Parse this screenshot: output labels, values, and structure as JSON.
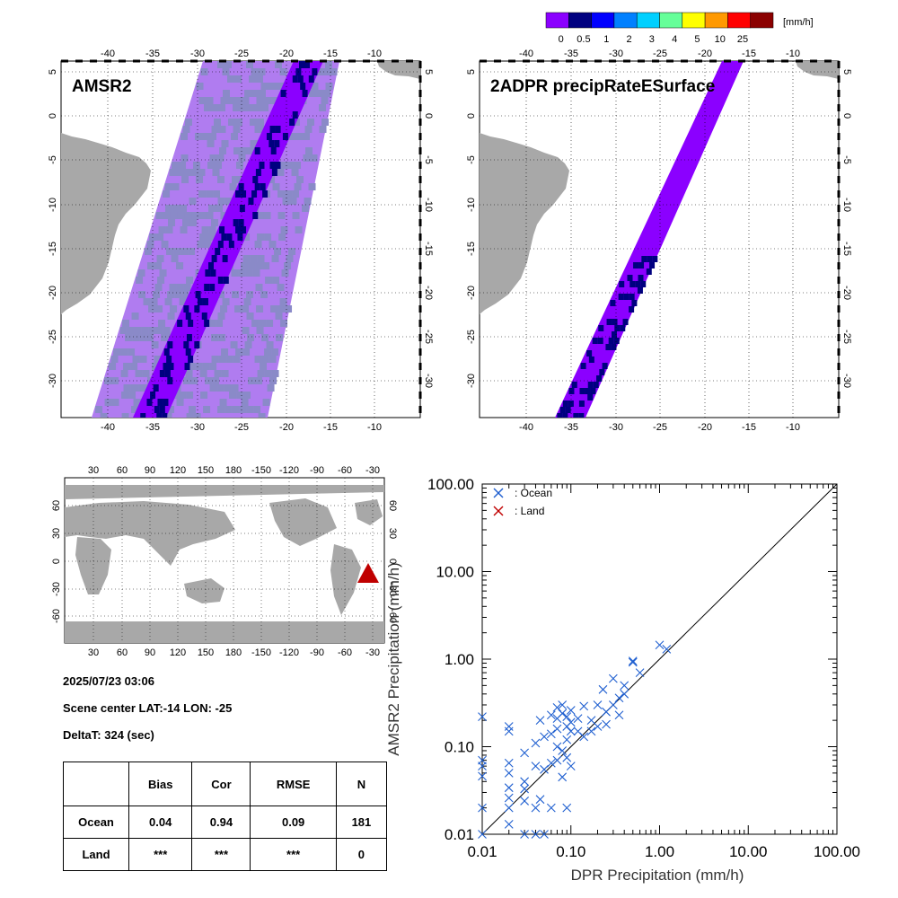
{
  "legend": {
    "unit": "[mm/h]",
    "labels": [
      "0",
      "0.5",
      "1",
      "2",
      "3",
      "4",
      "5",
      "10",
      "25"
    ],
    "colors": [
      "#8b00ff",
      "#000080",
      "#0000ff",
      "#0080ff",
      "#00d0ff",
      "#66ff99",
      "#ffff00",
      "#ff9900",
      "#ff0000",
      "#8b0000"
    ]
  },
  "maps": {
    "left_title": "AMSR2",
    "right_title": "2ADPR precipRateESurface",
    "lon_ticks": [
      "-40",
      "-35",
      "-30",
      "-25",
      "-20",
      "-15",
      "-10"
    ],
    "lat_ticks": [
      "5",
      "0",
      "-5",
      "-10",
      "-15",
      "-20",
      "-25",
      "-30"
    ],
    "land_color": "#a8a8a8",
    "swath_light": "#b07cf0",
    "swath_gray": "#8a8ac8",
    "swath_core": "#8b00ff",
    "swath_dark": "#000080"
  },
  "globe": {
    "lon_ticks": [
      "30",
      "60",
      "90",
      "120",
      "150",
      "180",
      "-150",
      "-120",
      "-90",
      "-60",
      "-30"
    ],
    "lat_ticks": [
      "60",
      "30",
      "0",
      "-30",
      "-60"
    ],
    "marker_color": "#c00000"
  },
  "info": {
    "datetime": "2025/07/23 03:06",
    "scene_center": "Scene center LAT:-14   LON: -25",
    "delta_t": "DeltaT:  324 (sec)"
  },
  "stats": {
    "headers": [
      "",
      "Bias",
      "Cor",
      "RMSE",
      "N"
    ],
    "rows": [
      {
        "label": "Ocean",
        "bias": "0.04",
        "cor": "0.94",
        "rmse": "0.09",
        "n": "181"
      },
      {
        "label": "Land",
        "bias": "***",
        "cor": "***",
        "rmse": "***",
        "n": "0"
      }
    ]
  },
  "chart_data": {
    "type": "scatter",
    "xlabel": "DPR Precipitation (mm/h)",
    "ylabel": "AMSR2 Precipitation (mm/h)",
    "xscale": "log",
    "yscale": "log",
    "xlim": [
      0.01,
      100
    ],
    "ylim": [
      0.01,
      100
    ],
    "tick_labels": [
      "0.01",
      "0.10",
      "1.00",
      "10.00",
      "100.00"
    ],
    "legend_placement": "top-left",
    "one_to_one_line": true,
    "series": [
      {
        "name": ": Ocean",
        "color": "#1f5fd0",
        "points": [
          [
            0.01,
            0.22
          ],
          [
            0.01,
            0.07
          ],
          [
            0.01,
            0.06
          ],
          [
            0.01,
            0.046
          ],
          [
            0.01,
            0.02
          ],
          [
            0.01,
            0.01
          ],
          [
            0.02,
            0.17
          ],
          [
            0.02,
            0.15
          ],
          [
            0.02,
            0.065
          ],
          [
            0.02,
            0.05
          ],
          [
            0.02,
            0.034
          ],
          [
            0.02,
            0.026
          ],
          [
            0.02,
            0.02
          ],
          [
            0.02,
            0.013
          ],
          [
            0.03,
            0.085
          ],
          [
            0.03,
            0.04
          ],
          [
            0.03,
            0.033
          ],
          [
            0.03,
            0.024
          ],
          [
            0.03,
            0.01
          ],
          [
            0.04,
            0.11
          ],
          [
            0.04,
            0.06
          ],
          [
            0.04,
            0.02
          ],
          [
            0.04,
            0.01
          ],
          [
            0.045,
            0.2
          ],
          [
            0.045,
            0.025
          ],
          [
            0.05,
            0.13
          ],
          [
            0.05,
            0.055
          ],
          [
            0.05,
            0.01
          ],
          [
            0.06,
            0.23
          ],
          [
            0.06,
            0.14
          ],
          [
            0.06,
            0.065
          ],
          [
            0.06,
            0.02
          ],
          [
            0.07,
            0.28
          ],
          [
            0.07,
            0.21
          ],
          [
            0.07,
            0.16
          ],
          [
            0.07,
            0.1
          ],
          [
            0.07,
            0.07
          ],
          [
            0.08,
            0.3
          ],
          [
            0.08,
            0.24
          ],
          [
            0.08,
            0.09
          ],
          [
            0.08,
            0.045
          ],
          [
            0.09,
            0.22
          ],
          [
            0.09,
            0.17
          ],
          [
            0.09,
            0.12
          ],
          [
            0.09,
            0.075
          ],
          [
            0.09,
            0.02
          ],
          [
            0.1,
            0.26
          ],
          [
            0.1,
            0.19
          ],
          [
            0.1,
            0.15
          ],
          [
            0.1,
            0.06
          ],
          [
            0.12,
            0.21
          ],
          [
            0.12,
            0.15
          ],
          [
            0.14,
            0.29
          ],
          [
            0.14,
            0.13
          ],
          [
            0.17,
            0.2
          ],
          [
            0.17,
            0.15
          ],
          [
            0.2,
            0.3
          ],
          [
            0.2,
            0.17
          ],
          [
            0.23,
            0.45
          ],
          [
            0.25,
            0.25
          ],
          [
            0.25,
            0.18
          ],
          [
            0.3,
            0.6
          ],
          [
            0.3,
            0.3
          ],
          [
            0.35,
            0.23
          ],
          [
            0.35,
            0.36
          ],
          [
            0.4,
            0.4
          ],
          [
            0.4,
            0.5
          ],
          [
            0.5,
            0.92
          ],
          [
            0.5,
            0.95
          ],
          [
            0.6,
            0.7
          ],
          [
            1.0,
            1.45
          ],
          [
            1.2,
            1.3
          ]
        ]
      },
      {
        "name": ": Land",
        "color": "#c00000",
        "points": []
      }
    ]
  }
}
